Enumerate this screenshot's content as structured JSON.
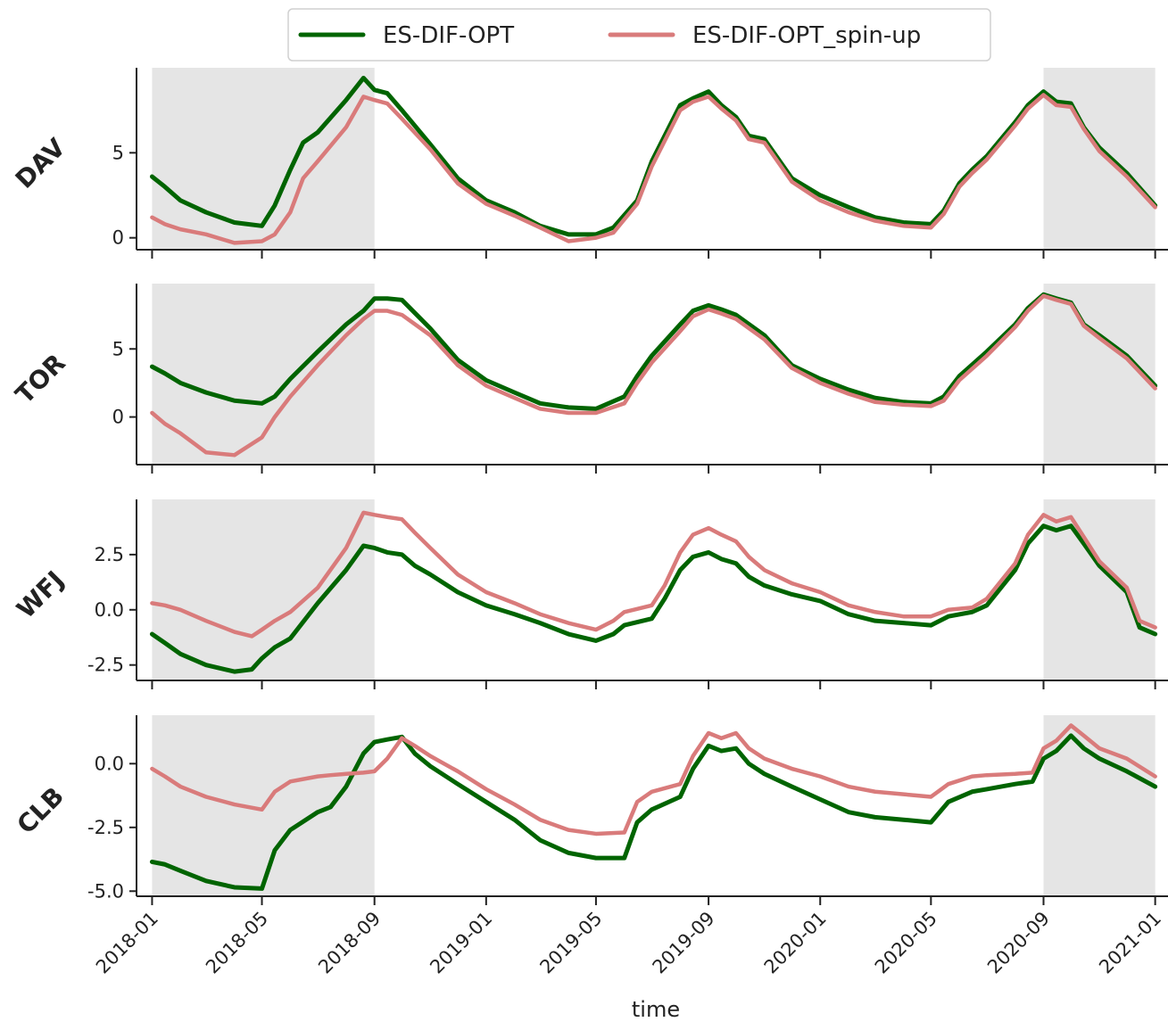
{
  "chart_data": {
    "type": "line",
    "xlabel": "time",
    "x_tick_labels": [
      "2018-01",
      "2018-05",
      "2018-09",
      "2019-01",
      "2019-05",
      "2019-09",
      "2020-01",
      "2020-05",
      "2020-09",
      "2021-01"
    ],
    "xlim": [
      "2017-12-15",
      "2021-01-15"
    ],
    "shaded_periods": [
      [
        "2018-01-01",
        "2018-09-01"
      ],
      [
        "2020-09-01",
        "2021-01-01"
      ]
    ],
    "shade_color": "#e5e5e5",
    "legend": {
      "placement": "top-center",
      "entries": [
        "ES-DIF-OPT",
        "ES-DIF-OPT_spin-up"
      ]
    },
    "series_styles": [
      {
        "name": "ES-DIF-OPT",
        "color": "#006400"
      },
      {
        "name": "ES-DIF-OPT_spin-up",
        "color": "#d97b7b"
      }
    ],
    "panels": [
      {
        "label": "DAV",
        "ylim": [
          -0.7,
          10.0
        ],
        "yticks": [
          0,
          5
        ],
        "x": [
          "2018-01-01",
          "2018-01-15",
          "2018-02-01",
          "2018-03-01",
          "2018-04-01",
          "2018-05-01",
          "2018-05-15",
          "2018-06-01",
          "2018-06-15",
          "2018-07-01",
          "2018-08-01",
          "2018-08-20",
          "2018-09-01",
          "2018-09-15",
          "2018-10-01",
          "2018-11-01",
          "2018-12-01",
          "2019-01-01",
          "2019-02-01",
          "2019-03-01",
          "2019-04-01",
          "2019-05-01",
          "2019-05-20",
          "2019-06-15",
          "2019-07-01",
          "2019-08-01",
          "2019-08-15",
          "2019-09-01",
          "2019-09-15",
          "2019-10-01",
          "2019-10-15",
          "2019-11-01",
          "2019-12-01",
          "2020-01-01",
          "2020-02-01",
          "2020-03-01",
          "2020-04-01",
          "2020-05-01",
          "2020-05-15",
          "2020-06-01",
          "2020-06-15",
          "2020-07-01",
          "2020-08-01",
          "2020-08-15",
          "2020-09-01",
          "2020-09-15",
          "2020-10-01",
          "2020-10-15",
          "2020-11-01",
          "2020-12-01",
          "2021-01-01"
        ],
        "series": [
          {
            "name": "ES-DIF-OPT",
            "values": [
              3.6,
              3.0,
              2.2,
              1.5,
              0.9,
              0.7,
              1.9,
              4.0,
              5.6,
              6.2,
              8.1,
              9.4,
              8.7,
              8.5,
              7.5,
              5.5,
              3.5,
              2.2,
              1.5,
              0.7,
              0.2,
              0.2,
              0.6,
              2.2,
              4.5,
              7.8,
              8.2,
              8.6,
              7.8,
              7.1,
              6.0,
              5.8,
              3.5,
              2.5,
              1.8,
              1.2,
              0.9,
              0.8,
              1.6,
              3.2,
              4.0,
              4.8,
              6.8,
              7.8,
              8.6,
              8.0,
              7.9,
              6.5,
              5.3,
              3.8,
              1.9
            ]
          },
          {
            "name": "ES-DIF-OPT_spin-up",
            "values": [
              1.2,
              0.8,
              0.5,
              0.2,
              -0.3,
              -0.2,
              0.2,
              1.5,
              3.5,
              4.5,
              6.5,
              8.3,
              8.1,
              7.9,
              7.0,
              5.2,
              3.2,
              2.0,
              1.3,
              0.6,
              -0.2,
              0.0,
              0.3,
              2.0,
              4.2,
              7.5,
              8.0,
              8.3,
              7.6,
              6.9,
              5.8,
              5.6,
              3.3,
              2.2,
              1.5,
              1.0,
              0.7,
              0.6,
              1.4,
              3.0,
              3.8,
              4.6,
              6.6,
              7.6,
              8.4,
              7.8,
              7.7,
              6.4,
              5.1,
              3.6,
              1.8
            ]
          }
        ]
      },
      {
        "label": "TOR",
        "ylim": [
          -3.5,
          9.8
        ],
        "yticks": [
          0,
          5
        ],
        "x": [
          "2018-01-01",
          "2018-01-15",
          "2018-02-01",
          "2018-03-01",
          "2018-04-01",
          "2018-05-01",
          "2018-05-15",
          "2018-06-01",
          "2018-07-01",
          "2018-08-01",
          "2018-08-20",
          "2018-09-01",
          "2018-09-15",
          "2018-10-01",
          "2018-11-01",
          "2018-12-01",
          "2019-01-01",
          "2019-02-01",
          "2019-03-01",
          "2019-04-01",
          "2019-05-01",
          "2019-06-01",
          "2019-06-15",
          "2019-07-01",
          "2019-08-01",
          "2019-08-15",
          "2019-09-01",
          "2019-09-15",
          "2019-10-01",
          "2019-11-01",
          "2019-12-01",
          "2020-01-01",
          "2020-02-01",
          "2020-03-01",
          "2020-04-01",
          "2020-05-01",
          "2020-05-15",
          "2020-06-01",
          "2020-07-01",
          "2020-08-01",
          "2020-08-15",
          "2020-09-01",
          "2020-09-15",
          "2020-10-01",
          "2020-10-15",
          "2020-11-01",
          "2020-12-01",
          "2021-01-01"
        ],
        "series": [
          {
            "name": "ES-DIF-OPT",
            "values": [
              3.7,
              3.2,
              2.5,
              1.8,
              1.2,
              1.0,
              1.5,
              2.8,
              4.8,
              6.8,
              7.8,
              8.7,
              8.7,
              8.6,
              6.5,
              4.2,
              2.7,
              1.8,
              1.0,
              0.7,
              0.6,
              1.5,
              3.0,
              4.5,
              6.8,
              7.8,
              8.2,
              7.9,
              7.5,
              6.0,
              3.8,
              2.8,
              2.0,
              1.4,
              1.1,
              1.0,
              1.5,
              3.0,
              4.8,
              6.8,
              8.0,
              9.0,
              8.7,
              8.4,
              6.8,
              6.0,
              4.5,
              2.3
            ]
          },
          {
            "name": "ES-DIF-OPT_spin-up",
            "values": [
              0.3,
              -0.5,
              -1.2,
              -2.6,
              -2.8,
              -1.5,
              0.0,
              1.5,
              3.8,
              6.0,
              7.2,
              7.8,
              7.8,
              7.5,
              6.0,
              3.8,
              2.3,
              1.4,
              0.6,
              0.3,
              0.3,
              1.0,
              2.5,
              4.0,
              6.3,
              7.4,
              7.9,
              7.6,
              7.2,
              5.7,
              3.6,
              2.5,
              1.7,
              1.1,
              0.9,
              0.8,
              1.2,
              2.7,
              4.5,
              6.6,
              7.8,
              8.9,
              8.6,
              8.3,
              6.7,
              5.8,
              4.3,
              2.1
            ]
          }
        ]
      },
      {
        "label": "WFJ",
        "ylim": [
          -3.2,
          5.0
        ],
        "yticks": [
          -2.5,
          0.0,
          2.5
        ],
        "x": [
          "2018-01-01",
          "2018-01-15",
          "2018-02-01",
          "2018-03-01",
          "2018-04-01",
          "2018-04-20",
          "2018-05-01",
          "2018-05-15",
          "2018-06-01",
          "2018-07-01",
          "2018-08-01",
          "2018-08-20",
          "2018-09-01",
          "2018-09-15",
          "2018-10-01",
          "2018-10-15",
          "2018-11-01",
          "2018-12-01",
          "2019-01-01",
          "2019-02-01",
          "2019-03-01",
          "2019-04-01",
          "2019-05-01",
          "2019-05-20",
          "2019-06-01",
          "2019-07-01",
          "2019-07-15",
          "2019-08-01",
          "2019-08-15",
          "2019-09-01",
          "2019-09-15",
          "2019-10-01",
          "2019-10-15",
          "2019-11-01",
          "2019-12-01",
          "2020-01-01",
          "2020-02-01",
          "2020-03-01",
          "2020-04-01",
          "2020-05-01",
          "2020-05-20",
          "2020-06-15",
          "2020-07-01",
          "2020-08-01",
          "2020-08-15",
          "2020-09-01",
          "2020-09-15",
          "2020-10-01",
          "2020-10-15",
          "2020-11-01",
          "2020-12-01",
          "2020-12-15",
          "2021-01-01"
        ],
        "series": [
          {
            "name": "ES-DIF-OPT",
            "values": [
              -1.1,
              -1.5,
              -2.0,
              -2.5,
              -2.8,
              -2.7,
              -2.2,
              -1.7,
              -1.3,
              0.3,
              1.8,
              2.9,
              2.8,
              2.6,
              2.5,
              2.0,
              1.6,
              0.8,
              0.2,
              -0.2,
              -0.6,
              -1.1,
              -1.4,
              -1.1,
              -0.7,
              -0.4,
              0.5,
              1.8,
              2.4,
              2.6,
              2.3,
              2.1,
              1.5,
              1.1,
              0.7,
              0.4,
              -0.2,
              -0.5,
              -0.6,
              -0.7,
              -0.3,
              -0.1,
              0.2,
              1.8,
              3.0,
              3.8,
              3.6,
              3.8,
              3.0,
              2.0,
              0.8,
              -0.8,
              -1.1
            ]
          },
          {
            "name": "ES-DIF-OPT_spin-up",
            "values": [
              0.3,
              0.2,
              0.0,
              -0.5,
              -1.0,
              -1.2,
              -0.9,
              -0.5,
              -0.1,
              1.0,
              2.8,
              4.4,
              4.3,
              4.2,
              4.1,
              3.5,
              2.8,
              1.6,
              0.8,
              0.3,
              -0.2,
              -0.6,
              -0.9,
              -0.5,
              -0.1,
              0.2,
              1.1,
              2.6,
              3.4,
              3.7,
              3.4,
              3.1,
              2.4,
              1.8,
              1.2,
              0.8,
              0.2,
              -0.1,
              -0.3,
              -0.3,
              0.0,
              0.1,
              0.5,
              2.1,
              3.4,
              4.3,
              4.0,
              4.2,
              3.3,
              2.2,
              1.0,
              -0.5,
              -0.8
            ]
          }
        ]
      },
      {
        "label": "CLB",
        "ylim": [
          -5.2,
          1.9
        ],
        "yticks": [
          -5.0,
          -2.5,
          0.0
        ],
        "x": [
          "2018-01-01",
          "2018-01-15",
          "2018-02-01",
          "2018-03-01",
          "2018-04-01",
          "2018-05-01",
          "2018-05-15",
          "2018-06-01",
          "2018-07-01",
          "2018-07-15",
          "2018-08-01",
          "2018-08-20",
          "2018-09-01",
          "2018-09-15",
          "2018-10-01",
          "2018-10-15",
          "2018-11-01",
          "2018-12-01",
          "2019-01-01",
          "2019-02-01",
          "2019-03-01",
          "2019-04-01",
          "2019-05-01",
          "2019-06-01",
          "2019-06-15",
          "2019-07-01",
          "2019-08-01",
          "2019-08-15",
          "2019-09-01",
          "2019-09-15",
          "2019-10-01",
          "2019-10-15",
          "2019-11-01",
          "2019-12-01",
          "2020-01-01",
          "2020-02-01",
          "2020-03-01",
          "2020-04-01",
          "2020-05-01",
          "2020-05-20",
          "2020-06-15",
          "2020-07-01",
          "2020-08-01",
          "2020-08-20",
          "2020-09-01",
          "2020-09-15",
          "2020-10-01",
          "2020-10-15",
          "2020-11-01",
          "2020-12-01",
          "2021-01-01"
        ],
        "series": [
          {
            "name": "ES-DIF-OPT",
            "values": [
              -3.85,
              -3.95,
              -4.2,
              -4.6,
              -4.85,
              -4.9,
              -3.4,
              -2.6,
              -1.9,
              -1.7,
              -0.9,
              0.4,
              0.85,
              0.95,
              1.05,
              0.4,
              -0.1,
              -0.8,
              -1.5,
              -2.2,
              -3.0,
              -3.5,
              -3.7,
              -3.7,
              -2.3,
              -1.8,
              -1.3,
              -0.2,
              0.7,
              0.5,
              0.6,
              0.0,
              -0.4,
              -0.9,
              -1.4,
              -1.9,
              -2.1,
              -2.2,
              -2.3,
              -1.5,
              -1.1,
              -1.0,
              -0.8,
              -0.7,
              0.2,
              0.5,
              1.1,
              0.6,
              0.2,
              -0.3,
              -0.9
            ]
          },
          {
            "name": "ES-DIF-OPT_spin-up",
            "values": [
              -0.2,
              -0.5,
              -0.9,
              -1.3,
              -1.6,
              -1.8,
              -1.1,
              -0.7,
              -0.5,
              -0.45,
              -0.4,
              -0.35,
              -0.3,
              0.2,
              1.0,
              0.7,
              0.3,
              -0.3,
              -1.0,
              -1.6,
              -2.2,
              -2.6,
              -2.75,
              -2.7,
              -1.5,
              -1.1,
              -0.8,
              0.3,
              1.2,
              1.0,
              1.2,
              0.6,
              0.2,
              -0.2,
              -0.5,
              -0.9,
              -1.1,
              -1.2,
              -1.3,
              -0.8,
              -0.5,
              -0.45,
              -0.4,
              -0.35,
              0.6,
              0.9,
              1.5,
              1.1,
              0.6,
              0.2,
              -0.5
            ]
          }
        ]
      }
    ]
  }
}
